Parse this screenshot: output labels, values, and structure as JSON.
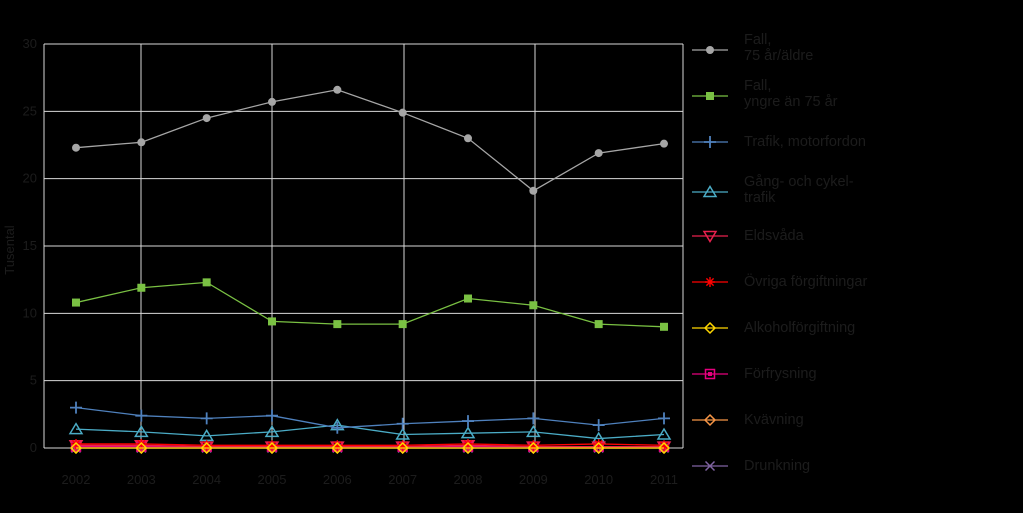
{
  "chart_data": {
    "type": "line",
    "title": "",
    "xlabel": "",
    "ylabel": "Tusental",
    "x": [
      "2002",
      "2003",
      "2004",
      "2005",
      "2006",
      "2007",
      "2008",
      "2009",
      "2010",
      "2011"
    ],
    "ylim": [
      0,
      30
    ],
    "yticks": [
      0,
      5,
      10,
      15,
      20,
      25,
      30
    ],
    "grid": true,
    "legend_position": "right",
    "series": [
      {
        "name": "Fall,\n75 år/äldre",
        "color": "#a6a6a6",
        "marker": "circle",
        "values": [
          22.3,
          22.7,
          24.5,
          25.7,
          26.6,
          24.9,
          23.0,
          19.1,
          21.9,
          22.6
        ]
      },
      {
        "name": "Fall,\nyngre än 75 år",
        "color": "#7ac143",
        "marker": "square",
        "values": [
          10.8,
          11.9,
          12.3,
          9.4,
          9.2,
          9.2,
          11.1,
          10.6,
          9.2,
          9.0
        ]
      },
      {
        "name": "Trafik, motorfordon",
        "color": "#4f81bd",
        "marker": "plus",
        "values": [
          3.0,
          2.4,
          2.2,
          2.4,
          1.5,
          1.8,
          2.0,
          2.2,
          1.7,
          2.2
        ]
      },
      {
        "name": "Gång- och cykel-\ntrafik",
        "color": "#4bacc6",
        "marker": "triangle-up",
        "values": [
          1.4,
          1.2,
          0.9,
          1.2,
          1.7,
          1.0,
          1.1,
          1.2,
          0.7,
          1.0
        ]
      },
      {
        "name": "Eldsvåda",
        "color": "#e8214e",
        "marker": "triangle-down",
        "values": [
          0.2,
          0.2,
          0.1,
          0.1,
          0.1,
          0.1,
          0.2,
          0.1,
          0.1,
          0.1
        ]
      },
      {
        "name": "Övriga förgiftningar",
        "color": "#ff0000",
        "marker": "asterisk",
        "values": [
          0.3,
          0.3,
          0.2,
          0.2,
          0.2,
          0.2,
          0.3,
          0.2,
          0.3,
          0.2
        ]
      },
      {
        "name": "Alkoholförgiftning",
        "color": "#ffd700",
        "marker": "diamond",
        "values": [
          0.0,
          0.0,
          0.0,
          0.0,
          0.0,
          0.0,
          0.0,
          0.0,
          0.0,
          0.0
        ]
      },
      {
        "name": "Förfrysning",
        "color": "#e6007e",
        "marker": "boxed-square",
        "values": [
          0.1,
          0.1,
          0.1,
          0.1,
          0.1,
          0.1,
          0.1,
          0.1,
          0.1,
          0.1
        ]
      },
      {
        "name": "Kvävning",
        "color": "#f79646",
        "marker": "diamond",
        "values": [
          0.0,
          0.0,
          0.0,
          0.0,
          0.0,
          0.0,
          0.0,
          0.0,
          0.0,
          0.0
        ]
      },
      {
        "name": "Drunkning",
        "color": "#8064a2",
        "marker": "cross",
        "values": [
          0.0,
          0.0,
          0.0,
          0.0,
          0.0,
          0.0,
          0.0,
          0.0,
          0.0,
          0.0
        ]
      }
    ]
  }
}
